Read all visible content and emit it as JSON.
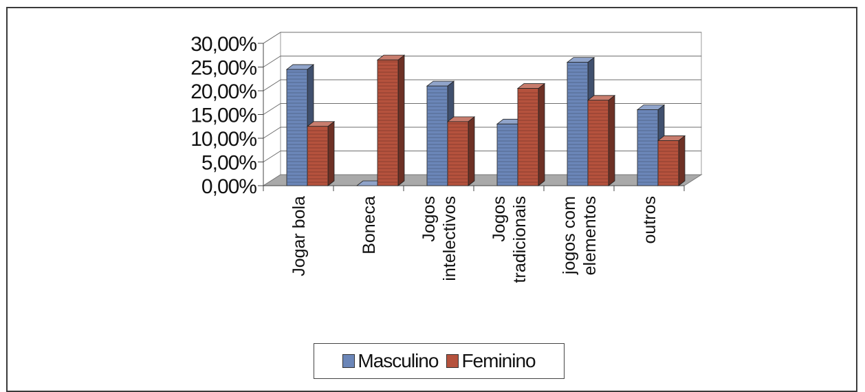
{
  "chart_data": {
    "type": "bar",
    "title": "",
    "xlabel": "",
    "ylabel": "",
    "ylim": [
      0,
      30
    ],
    "yticks": [
      "0,00%",
      "5,00%",
      "10,00%",
      "15,00%",
      "20,00%",
      "25,00%",
      "30,00%"
    ],
    "categories": [
      [
        "Jogar bola"
      ],
      [
        "Boneca"
      ],
      [
        "Jogos",
        "intelectivos"
      ],
      [
        "Jogos",
        "tradicionais"
      ],
      [
        "jogos com",
        "elementos"
      ],
      [
        "outros"
      ]
    ],
    "series": [
      {
        "name": "Masculino",
        "values": [
          24.5,
          0,
          21,
          13,
          26,
          16
        ],
        "color": "#6b86b8"
      },
      {
        "name": "Feminino",
        "values": [
          12.5,
          26.5,
          13.5,
          20.5,
          18,
          9.5
        ],
        "color": "#b5523d"
      }
    ],
    "grid": true,
    "legend_position": "bottom"
  }
}
